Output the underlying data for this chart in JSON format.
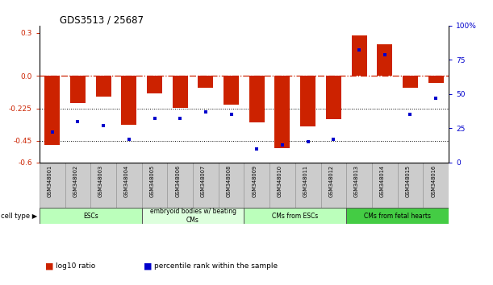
{
  "title": "GDS3513 / 25687",
  "samples": [
    "GSM348001",
    "GSM348002",
    "GSM348003",
    "GSM348004",
    "GSM348005",
    "GSM348006",
    "GSM348007",
    "GSM348008",
    "GSM348009",
    "GSM348010",
    "GSM348011",
    "GSM348012",
    "GSM348013",
    "GSM348014",
    "GSM348015",
    "GSM348016"
  ],
  "log10_ratio": [
    -0.48,
    -0.19,
    -0.14,
    -0.34,
    -0.12,
    -0.22,
    -0.08,
    -0.2,
    -0.32,
    -0.5,
    -0.35,
    -0.3,
    0.28,
    0.22,
    -0.08,
    -0.05
  ],
  "percentile_rank": [
    22,
    30,
    27,
    17,
    32,
    32,
    37,
    35,
    10,
    13,
    15,
    17,
    82,
    79,
    35,
    47
  ],
  "cell_type_groups": [
    {
      "label": "ESCs",
      "start": 0,
      "end": 3,
      "color": "#bbffbb"
    },
    {
      "label": "embryoid bodies w/ beating\nCMs",
      "start": 4,
      "end": 7,
      "color": "#ddffdd"
    },
    {
      "label": "CMs from ESCs",
      "start": 8,
      "end": 11,
      "color": "#bbffbb"
    },
    {
      "label": "CMs from fetal hearts",
      "start": 12,
      "end": 15,
      "color": "#44cc44"
    }
  ],
  "bar_color": "#cc2200",
  "dot_color": "#0000cc",
  "zero_line_color": "#cc2200",
  "hline_color": "#000000",
  "ylim_left": [
    -0.6,
    0.35
  ],
  "ylim_right": [
    0,
    100
  ],
  "yticks_left": [
    0.3,
    0.0,
    -0.225,
    -0.45,
    -0.6
  ],
  "yticks_right": [
    100,
    75,
    50,
    25,
    0
  ],
  "bar_width": 0.6,
  "legend_items": [
    {
      "label": "log10 ratio",
      "color": "#cc2200"
    },
    {
      "label": "percentile rank within the sample",
      "color": "#0000cc"
    }
  ]
}
